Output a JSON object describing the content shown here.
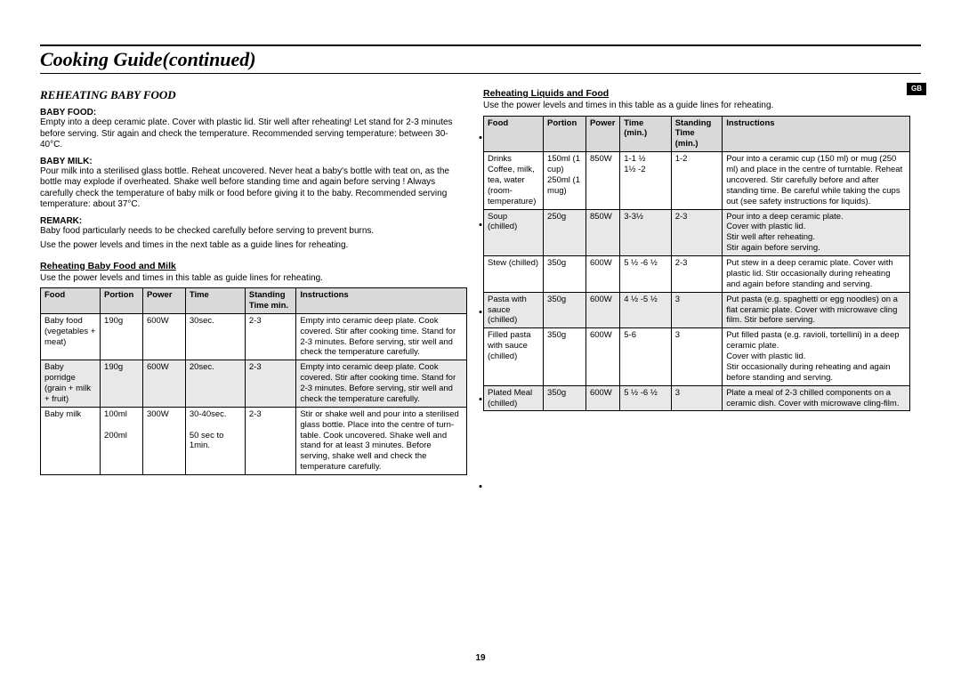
{
  "page_title": "Cooking Guide(continued)",
  "gb_tag": "GB",
  "page_number": "19",
  "left": {
    "section_title": "REHEATING BABY FOOD",
    "baby_food_label": "BABY FOOD:",
    "baby_food_text": "Empty into a deep ceramic plate. Cover with plastic lid. Stir well after reheating! Let stand for 2-3 minutes before serving. Stir again and check the temperature. Recommended serving temperature: between 30-40°C.",
    "baby_milk_label": "BABY MILK:",
    "baby_milk_text": "Pour milk into a sterilised glass bottle. Reheat uncovered. Never heat a baby's bottle with teat on, as the bottle may explode if overheated. Shake well before standing time and again before serving ! Always carefully check the temperature of baby milk or food before giving it to the baby. Recommended serving temperature: about 37°C.",
    "remark_label": "REMARK:",
    "remark_text1": "Baby food particularly needs to be checked carefully before serving to prevent burns.",
    "remark_text2": "Use the power levels and times in the next table as a guide lines for reheating.",
    "table_heading": "Reheating Baby Food and Milk",
    "table_intro": "Use the power levels and times in this table as guide lines for reheating.",
    "headers": [
      "Food",
      "Portion",
      "Power",
      "Time",
      "Standing Time min.",
      "Instructions"
    ],
    "rows": [
      {
        "shade": false,
        "c": [
          "Baby food (vegetables + meat)",
          "190g",
          "600W",
          "30sec.",
          "2-3",
          "Empty into ceramic deep plate. Cook covered. Stir after cooking time. Stand for 2-3 minutes. Before serving, stir well and check the temperature carefully."
        ]
      },
      {
        "shade": true,
        "c": [
          "Baby porridge (grain + milk + fruit)",
          "190g",
          "600W",
          "20sec.",
          "2-3",
          "Empty into ceramic deep plate. Cook covered. Stir after cooking time. Stand for 2-3 minutes. Before serving, stir well and check the temperature carefully."
        ]
      },
      {
        "shade": false,
        "c": [
          "Baby milk",
          "100ml\n\n200ml",
          "300W",
          "30-40sec.\n\n50 sec to 1min.",
          "2-3",
          "Stir or shake well and pour into a sterilised glass bottle. Place into the centre of turn-table. Cook uncovered. Shake well and stand for at least 3 minutes. Before serving, shake well and check the temperature carefully."
        ]
      }
    ]
  },
  "right": {
    "table_heading": "Reheating Liquids and Food",
    "table_intro": "Use the power levels and times in this table as a guide lines for reheating.",
    "headers": [
      "Food",
      "Portion",
      "Power",
      "Time (min.)",
      "Standing Time (min.)",
      "Instructions"
    ],
    "rows": [
      {
        "shade": false,
        "c": [
          "Drinks Coffee, milk, tea, water (room-temperature)",
          "150ml (1 cup) 250ml (1 mug)",
          "850W",
          "1-1 ½\n1½ -2",
          "1-2",
          "Pour into a ceramic cup (150 ml) or mug (250 ml) and place in the centre of turntable. Reheat uncovered. Stir carefully before and after standing time. Be careful while taking the cups out (see safety instructions for liquids)."
        ]
      },
      {
        "shade": true,
        "c": [
          "Soup (chilled)",
          "250g",
          "850W",
          "3-3½",
          "2-3",
          "Pour into a deep ceramic plate.\nCover with plastic lid.\nStir well after reheating.\nStir again before serving."
        ]
      },
      {
        "shade": false,
        "c": [
          "Stew (chilled)",
          "350g",
          "600W",
          "5 ½ -6 ½",
          "2-3",
          "Put stew in a deep ceramic plate. Cover with plastic lid. Stir occasionally during reheating and again before standing and serving."
        ]
      },
      {
        "shade": true,
        "c": [
          "Pasta with sauce (chilled)",
          "350g",
          "600W",
          "4 ½ -5 ½",
          "3",
          "Put pasta (e.g. spaghetti or egg noodles) on a flat ceramic plate. Cover with microwave cling film. Stir before serving."
        ]
      },
      {
        "shade": false,
        "c": [
          "Filled pasta with sauce (chilled)",
          "350g",
          "600W",
          "5-6",
          "3",
          "Put filled pasta (e.g. ravioli, tortellini) in a deep ceramic plate.\nCover with plastic lid.\nStir occasionally during reheating and again before standing and serving."
        ]
      },
      {
        "shade": true,
        "c": [
          "Plated Meal (chilled)",
          "350g",
          "600W",
          "5 ½ -6 ½",
          "3",
          "Plate a meal of 2-3 chilled components on a ceramic dish. Cover with microwave cling-film."
        ]
      }
    ]
  }
}
